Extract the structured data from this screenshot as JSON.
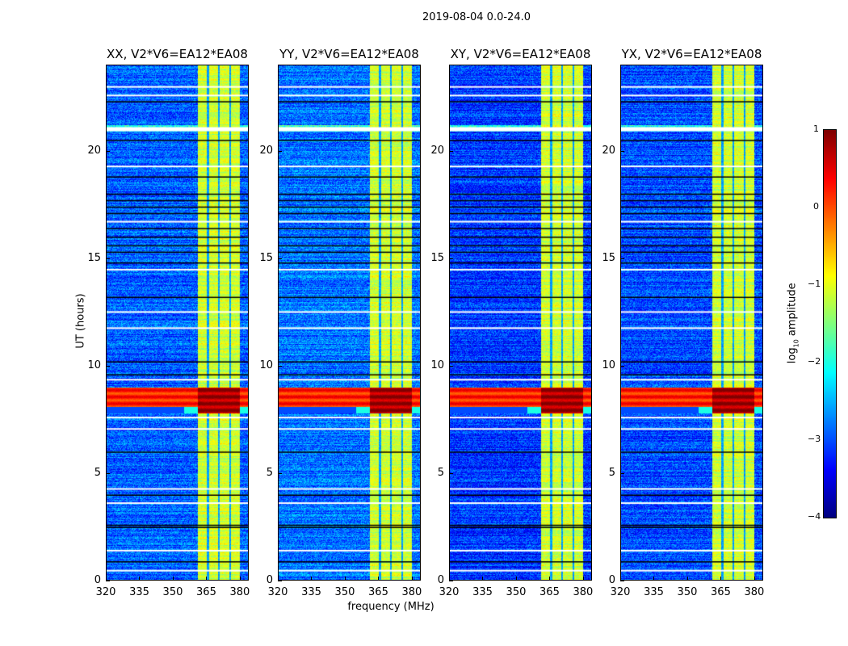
{
  "chart_data": {
    "type": "heatmap",
    "title": "2019-08-04 0.0-24.0",
    "xlabel": "frequency (MHz)",
    "ylabel": "UT (hours)",
    "xlim": [
      320,
      384
    ],
    "ylim": [
      0,
      24
    ],
    "xticks": [
      "320",
      "335",
      "350",
      "365",
      "380"
    ],
    "xtick_values": [
      320,
      335,
      350,
      365,
      380
    ],
    "yticks": [
      "0",
      "5",
      "10",
      "15",
      "20"
    ],
    "ytick_values": [
      0,
      5,
      10,
      15,
      20
    ],
    "colormap": "jet",
    "colorbar": {
      "label_prefix": "log",
      "label_sub": "10",
      "label_suffix": " amplitude",
      "range": [
        -4,
        1
      ],
      "ticks": [
        "1",
        "0",
        "−1",
        "−2",
        "−3",
        "−4"
      ],
      "tick_values": [
        1,
        0,
        -1,
        -2,
        -3,
        -4
      ]
    },
    "panels": [
      {
        "title": "XX, V2*V6=EA12*EA08",
        "background_level": -2.9
      },
      {
        "title": "YY, V2*V6=EA12*EA08",
        "background_level": -2.8
      },
      {
        "title": "XY, V2*V6=EA12*EA08",
        "background_level": -3.1
      },
      {
        "title": "YX, V2*V6=EA12*EA08",
        "background_level": -3.0
      }
    ],
    "bright_band_mhz": [
      361,
      380
    ],
    "bright_band_level": -1.1,
    "band_gaps_mhz": [
      365.5,
      370.5,
      375.5
    ],
    "rfi_ut_hours": [
      7.8,
      9.0
    ],
    "rfi_level": 0.5,
    "flagged_white_ut": [
      0.5,
      1.43,
      3.64,
      4.3,
      7.09,
      7.62,
      9.38,
      11.78,
      12.53,
      14.5,
      16.73,
      19.3,
      21.09,
      22.6,
      23.0
    ],
    "flagged_black_ut": [
      0.9,
      2.5,
      2.6,
      4.0,
      6.0,
      9.6,
      10.2,
      13.2,
      14.8,
      15.3,
      15.6,
      16.0,
      16.4,
      17.1,
      17.4,
      17.7,
      18.0,
      18.8,
      20.5,
      22.3
    ]
  }
}
